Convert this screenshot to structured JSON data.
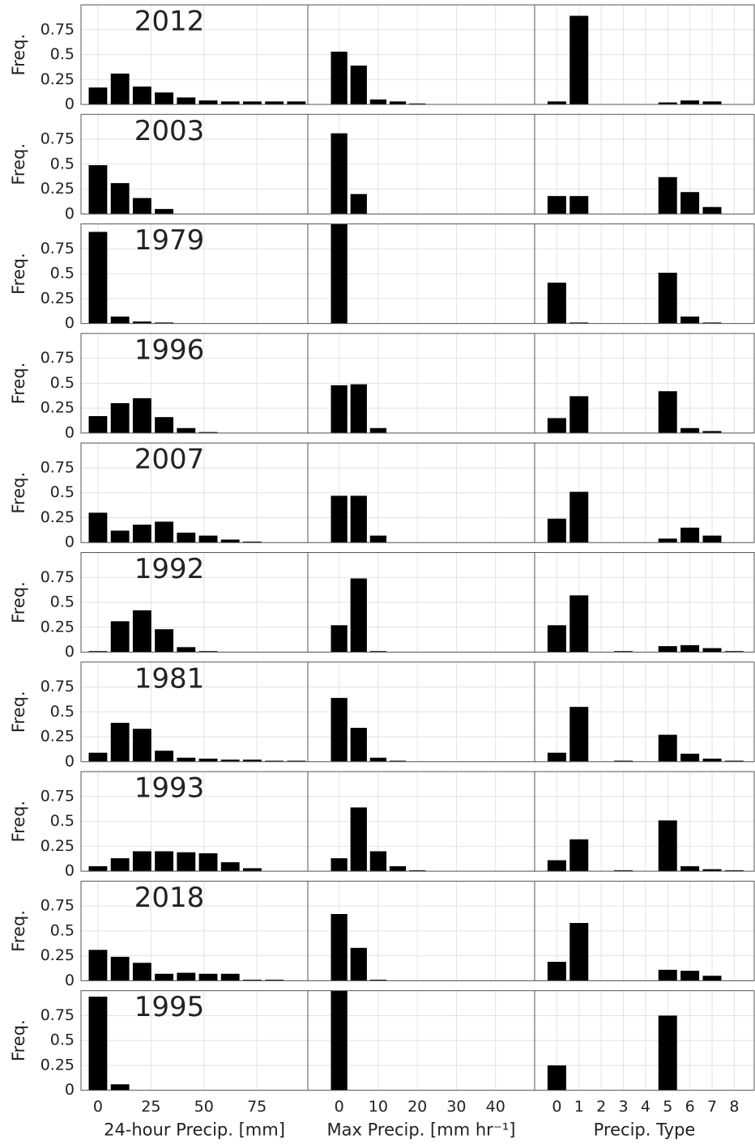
{
  "chart_data": [
    {
      "type": "bar",
      "title": "2012",
      "ylabel": "Freq.",
      "x": [
        0,
        10.4,
        20.8,
        31.2,
        41.6,
        52,
        62.4,
        72.8,
        83.2,
        93.6
      ],
      "values": [
        0.17,
        0.31,
        0.18,
        0.12,
        0.07,
        0.04,
        0.03,
        0.03,
        0.03,
        0.03
      ],
      "xlim": [
        -8,
        99
      ],
      "ylim": [
        0,
        1
      ],
      "xticks": [
        0,
        25,
        50,
        75
      ],
      "yticks": [
        0,
        0.25,
        0.5,
        0.75
      ],
      "color": "#000000",
      "grid": true
    },
    {
      "type": "bar",
      "x": [
        0,
        5,
        10,
        15,
        20
      ],
      "values": [
        0.53,
        0.39,
        0.05,
        0.03,
        0.01
      ],
      "xlim": [
        -8,
        50
      ],
      "ylim": [
        0,
        1
      ],
      "xticks": [
        0,
        10,
        20,
        30,
        40
      ],
      "yticks": [
        0,
        0.25,
        0.5,
        0.75
      ],
      "color": "#000000",
      "grid": true
    },
    {
      "type": "bar",
      "x": [
        0,
        1,
        2,
        3,
        4,
        5,
        6,
        7,
        8
      ],
      "values": [
        0.03,
        0.89,
        0,
        0,
        0,
        0.02,
        0.04,
        0.03,
        0
      ],
      "xlim": [
        -1,
        8.9
      ],
      "ylim": [
        0,
        1
      ],
      "xticks": [
        0,
        1,
        2,
        3,
        4,
        5,
        6,
        7,
        8
      ],
      "yticks": [
        0,
        0.25,
        0.5,
        0.75
      ],
      "color": "#000000",
      "grid": true
    },
    {
      "type": "bar",
      "title": "2003",
      "ylabel": "Freq.",
      "x": [
        0,
        10.4,
        20.8,
        31.2,
        41.6,
        52,
        62.4,
        72.8,
        83.2,
        93.6
      ],
      "values": [
        0.49,
        0.31,
        0.16,
        0.05,
        0,
        0,
        0,
        0,
        0,
        0
      ],
      "xlim": [
        -8,
        99
      ],
      "ylim": [
        0,
        1
      ],
      "xticks": [
        0,
        25,
        50,
        75
      ],
      "yticks": [
        0,
        0.25,
        0.5,
        0.75
      ],
      "color": "#000000",
      "grid": true
    },
    {
      "type": "bar",
      "x": [
        0,
        5,
        10,
        15,
        20
      ],
      "values": [
        0.81,
        0.2,
        0,
        0,
        0
      ],
      "xlim": [
        -8,
        50
      ],
      "ylim": [
        0,
        1
      ],
      "xticks": [
        0,
        10,
        20,
        30,
        40
      ],
      "yticks": [
        0,
        0.25,
        0.5,
        0.75
      ],
      "color": "#000000",
      "grid": true
    },
    {
      "type": "bar",
      "x": [
        0,
        1,
        2,
        3,
        4,
        5,
        6,
        7,
        8
      ],
      "values": [
        0.18,
        0.18,
        0,
        0,
        0,
        0.37,
        0.22,
        0.07,
        0
      ],
      "xlim": [
        -1,
        8.9
      ],
      "ylim": [
        0,
        1
      ],
      "xticks": [
        0,
        1,
        2,
        3,
        4,
        5,
        6,
        7,
        8
      ],
      "yticks": [
        0,
        0.25,
        0.5,
        0.75
      ],
      "color": "#000000",
      "grid": true
    },
    {
      "type": "bar",
      "title": "1979",
      "ylabel": "Freq.",
      "x": [
        0,
        10.4,
        20.8,
        31.2,
        41.6,
        52,
        62.4,
        72.8,
        83.2,
        93.6
      ],
      "values": [
        0.92,
        0.07,
        0.02,
        0.01,
        0,
        0,
        0,
        0,
        0,
        0
      ],
      "xlim": [
        -8,
        99
      ],
      "ylim": [
        0,
        1
      ],
      "xticks": [
        0,
        25,
        50,
        75
      ],
      "yticks": [
        0,
        0.25,
        0.5,
        0.75
      ],
      "color": "#000000",
      "grid": true
    },
    {
      "type": "bar",
      "x": [
        0,
        5,
        10,
        15,
        20
      ],
      "values": [
        1,
        0,
        0,
        0,
        0
      ],
      "xlim": [
        -8,
        50
      ],
      "ylim": [
        0,
        1
      ],
      "xticks": [
        0,
        10,
        20,
        30,
        40
      ],
      "yticks": [
        0,
        0.25,
        0.5,
        0.75
      ],
      "color": "#000000",
      "grid": true
    },
    {
      "type": "bar",
      "x": [
        0,
        1,
        2,
        3,
        4,
        5,
        6,
        7,
        8
      ],
      "values": [
        0.41,
        0.01,
        0,
        0,
        0,
        0.51,
        0.07,
        0.01,
        0
      ],
      "xlim": [
        -1,
        8.9
      ],
      "ylim": [
        0,
        1
      ],
      "xticks": [
        0,
        1,
        2,
        3,
        4,
        5,
        6,
        7,
        8
      ],
      "yticks": [
        0,
        0.25,
        0.5,
        0.75
      ],
      "color": "#000000",
      "grid": true
    },
    {
      "type": "bar",
      "title": "1996",
      "ylabel": "Freq.",
      "x": [
        0,
        10.4,
        20.8,
        31.2,
        41.6,
        52,
        62.4,
        72.8,
        83.2,
        93.6
      ],
      "values": [
        0.17,
        0.3,
        0.35,
        0.16,
        0.05,
        0.01,
        0,
        0,
        0,
        0
      ],
      "xlim": [
        -8,
        99
      ],
      "ylim": [
        0,
        1
      ],
      "xticks": [
        0,
        25,
        50,
        75
      ],
      "yticks": [
        0,
        0.25,
        0.5,
        0.75
      ],
      "color": "#000000",
      "grid": true
    },
    {
      "type": "bar",
      "x": [
        0,
        5,
        10,
        15,
        20
      ],
      "values": [
        0.48,
        0.49,
        0.05,
        0,
        0
      ],
      "xlim": [
        -8,
        50
      ],
      "ylim": [
        0,
        1
      ],
      "xticks": [
        0,
        10,
        20,
        30,
        40
      ],
      "yticks": [
        0,
        0.25,
        0.5,
        0.75
      ],
      "color": "#000000",
      "grid": true
    },
    {
      "type": "bar",
      "x": [
        0,
        1,
        2,
        3,
        4,
        5,
        6,
        7,
        8
      ],
      "values": [
        0.15,
        0.37,
        0,
        0,
        0,
        0.42,
        0.05,
        0.02,
        0
      ],
      "xlim": [
        -1,
        8.9
      ],
      "ylim": [
        0,
        1
      ],
      "xticks": [
        0,
        1,
        2,
        3,
        4,
        5,
        6,
        7,
        8
      ],
      "yticks": [
        0,
        0.25,
        0.5,
        0.75
      ],
      "color": "#000000",
      "grid": true
    },
    {
      "type": "bar",
      "title": "2007",
      "ylabel": "Freq.",
      "x": [
        0,
        10.4,
        20.8,
        31.2,
        41.6,
        52,
        62.4,
        72.8,
        83.2,
        93.6
      ],
      "values": [
        0.3,
        0.12,
        0.18,
        0.21,
        0.1,
        0.07,
        0.03,
        0.01,
        0,
        0
      ],
      "xlim": [
        -8,
        99
      ],
      "ylim": [
        0,
        1
      ],
      "xticks": [
        0,
        25,
        50,
        75
      ],
      "yticks": [
        0,
        0.25,
        0.5,
        0.75
      ],
      "color": "#000000",
      "grid": true
    },
    {
      "type": "bar",
      "x": [
        0,
        5,
        10,
        15,
        20
      ],
      "values": [
        0.47,
        0.47,
        0.07,
        0,
        0
      ],
      "xlim": [
        -8,
        50
      ],
      "ylim": [
        0,
        1
      ],
      "xticks": [
        0,
        10,
        20,
        30,
        40
      ],
      "yticks": [
        0,
        0.25,
        0.5,
        0.75
      ],
      "color": "#000000",
      "grid": true
    },
    {
      "type": "bar",
      "x": [
        0,
        1,
        2,
        3,
        4,
        5,
        6,
        7,
        8
      ],
      "values": [
        0.24,
        0.51,
        0,
        0,
        0,
        0.04,
        0.15,
        0.07,
        0
      ],
      "xlim": [
        -1,
        8.9
      ],
      "ylim": [
        0,
        1
      ],
      "xticks": [
        0,
        1,
        2,
        3,
        4,
        5,
        6,
        7,
        8
      ],
      "yticks": [
        0,
        0.25,
        0.5,
        0.75
      ],
      "color": "#000000",
      "grid": true
    },
    {
      "type": "bar",
      "title": "1992",
      "ylabel": "Freq.",
      "x": [
        0,
        10.4,
        20.8,
        31.2,
        41.6,
        52,
        62.4,
        72.8,
        83.2,
        93.6
      ],
      "values": [
        0.01,
        0.31,
        0.42,
        0.23,
        0.05,
        0.01,
        0,
        0,
        0,
        0
      ],
      "xlim": [
        -8,
        99
      ],
      "ylim": [
        0,
        1
      ],
      "xticks": [
        0,
        25,
        50,
        75
      ],
      "yticks": [
        0,
        0.25,
        0.5,
        0.75
      ],
      "color": "#000000",
      "grid": true
    },
    {
      "type": "bar",
      "x": [
        0,
        5,
        10,
        15,
        20
      ],
      "values": [
        0.27,
        0.74,
        0.01,
        0,
        0
      ],
      "xlim": [
        -8,
        50
      ],
      "ylim": [
        0,
        1
      ],
      "xticks": [
        0,
        10,
        20,
        30,
        40
      ],
      "yticks": [
        0,
        0.25,
        0.5,
        0.75
      ],
      "color": "#000000",
      "grid": true
    },
    {
      "type": "bar",
      "x": [
        0,
        1,
        2,
        3,
        4,
        5,
        6,
        7,
        8
      ],
      "values": [
        0.27,
        0.57,
        0,
        0.01,
        0,
        0.06,
        0.07,
        0.04,
        0.01
      ],
      "xlim": [
        -1,
        8.9
      ],
      "ylim": [
        0,
        1
      ],
      "xticks": [
        0,
        1,
        2,
        3,
        4,
        5,
        6,
        7,
        8
      ],
      "yticks": [
        0,
        0.25,
        0.5,
        0.75
      ],
      "color": "#000000",
      "grid": true
    },
    {
      "type": "bar",
      "title": "1981",
      "ylabel": "Freq.",
      "x": [
        0,
        10.4,
        20.8,
        31.2,
        41.6,
        52,
        62.4,
        72.8,
        83.2,
        93.6
      ],
      "values": [
        0.09,
        0.39,
        0.33,
        0.11,
        0.04,
        0.03,
        0.02,
        0.02,
        0.01,
        0.01
      ],
      "xlim": [
        -8,
        99
      ],
      "ylim": [
        0,
        1
      ],
      "xticks": [
        0,
        25,
        50,
        75
      ],
      "yticks": [
        0,
        0.25,
        0.5,
        0.75
      ],
      "color": "#000000",
      "grid": true
    },
    {
      "type": "bar",
      "x": [
        0,
        5,
        10,
        15,
        20
      ],
      "values": [
        0.64,
        0.34,
        0.04,
        0.01,
        0
      ],
      "xlim": [
        -8,
        50
      ],
      "ylim": [
        0,
        1
      ],
      "xticks": [
        0,
        10,
        20,
        30,
        40
      ],
      "yticks": [
        0,
        0.25,
        0.5,
        0.75
      ],
      "color": "#000000",
      "grid": true
    },
    {
      "type": "bar",
      "x": [
        0,
        1,
        2,
        3,
        4,
        5,
        6,
        7,
        8
      ],
      "values": [
        0.09,
        0.55,
        0,
        0.01,
        0,
        0.27,
        0.08,
        0.03,
        0.01
      ],
      "xlim": [
        -1,
        8.9
      ],
      "ylim": [
        0,
        1
      ],
      "xticks": [
        0,
        1,
        2,
        3,
        4,
        5,
        6,
        7,
        8
      ],
      "yticks": [
        0,
        0.25,
        0.5,
        0.75
      ],
      "color": "#000000",
      "grid": true
    },
    {
      "type": "bar",
      "title": "1993",
      "ylabel": "Freq.",
      "x": [
        0,
        10.4,
        20.8,
        31.2,
        41.6,
        52,
        62.4,
        72.8,
        83.2,
        93.6
      ],
      "values": [
        0.05,
        0.13,
        0.2,
        0.2,
        0.19,
        0.18,
        0.09,
        0.03,
        0,
        0
      ],
      "xlim": [
        -8,
        99
      ],
      "ylim": [
        0,
        1
      ],
      "xticks": [
        0,
        25,
        50,
        75
      ],
      "yticks": [
        0,
        0.25,
        0.5,
        0.75
      ],
      "color": "#000000",
      "grid": true
    },
    {
      "type": "bar",
      "x": [
        0,
        5,
        10,
        15,
        20
      ],
      "values": [
        0.13,
        0.64,
        0.2,
        0.05,
        0.01
      ],
      "xlim": [
        -8,
        50
      ],
      "ylim": [
        0,
        1
      ],
      "xticks": [
        0,
        10,
        20,
        30,
        40
      ],
      "yticks": [
        0,
        0.25,
        0.5,
        0.75
      ],
      "color": "#000000",
      "grid": true
    },
    {
      "type": "bar",
      "x": [
        0,
        1,
        2,
        3,
        4,
        5,
        6,
        7,
        8
      ],
      "values": [
        0.11,
        0.32,
        0,
        0.01,
        0,
        0.51,
        0.05,
        0.02,
        0.01
      ],
      "xlim": [
        -1,
        8.9
      ],
      "ylim": [
        0,
        1
      ],
      "xticks": [
        0,
        1,
        2,
        3,
        4,
        5,
        6,
        7,
        8
      ],
      "yticks": [
        0,
        0.25,
        0.5,
        0.75
      ],
      "color": "#000000",
      "grid": true
    },
    {
      "type": "bar",
      "title": "2018",
      "ylabel": "Freq.",
      "x": [
        0,
        10.4,
        20.8,
        31.2,
        41.6,
        52,
        62.4,
        72.8,
        83.2,
        93.6
      ],
      "values": [
        0.31,
        0.24,
        0.18,
        0.07,
        0.08,
        0.07,
        0.07,
        0.01,
        0.01,
        0
      ],
      "xlim": [
        -8,
        99
      ],
      "ylim": [
        0,
        1
      ],
      "xticks": [
        0,
        25,
        50,
        75
      ],
      "yticks": [
        0,
        0.25,
        0.5,
        0.75
      ],
      "color": "#000000",
      "grid": true
    },
    {
      "type": "bar",
      "x": [
        0,
        5,
        10,
        15,
        20
      ],
      "values": [
        0.67,
        0.33,
        0.01,
        0,
        0
      ],
      "xlim": [
        -8,
        50
      ],
      "ylim": [
        0,
        1
      ],
      "xticks": [
        0,
        10,
        20,
        30,
        40
      ],
      "yticks": [
        0,
        0.25,
        0.5,
        0.75
      ],
      "color": "#000000",
      "grid": true
    },
    {
      "type": "bar",
      "x": [
        0,
        1,
        2,
        3,
        4,
        5,
        6,
        7,
        8
      ],
      "values": [
        0.19,
        0.58,
        0,
        0,
        0,
        0.11,
        0.1,
        0.05,
        0
      ],
      "xlim": [
        -1,
        8.9
      ],
      "ylim": [
        0,
        1
      ],
      "xticks": [
        0,
        1,
        2,
        3,
        4,
        5,
        6,
        7,
        8
      ],
      "yticks": [
        0,
        0.25,
        0.5,
        0.75
      ],
      "color": "#000000",
      "grid": true
    },
    {
      "type": "bar",
      "title": "1995",
      "ylabel": "Freq.",
      "xlabel": "24-hour Precip. [mm]",
      "x": [
        0,
        10.4,
        20.8,
        31.2,
        41.6,
        52,
        62.4,
        72.8,
        83.2,
        93.6
      ],
      "values": [
        0.94,
        0.06,
        0,
        0,
        0,
        0,
        0,
        0,
        0,
        0
      ],
      "xlim": [
        -8,
        99
      ],
      "ylim": [
        0,
        1
      ],
      "xticks": [
        0,
        25,
        50,
        75
      ],
      "yticks": [
        0,
        0.25,
        0.5,
        0.75
      ],
      "color": "#000000",
      "grid": true
    },
    {
      "type": "bar",
      "xlabel": "Max Precip. [mm hr⁻¹]",
      "x": [
        0,
        5,
        10,
        15,
        20
      ],
      "values": [
        1,
        0,
        0,
        0,
        0
      ],
      "xlim": [
        -8,
        50
      ],
      "ylim": [
        0,
        1
      ],
      "xticks": [
        0,
        10,
        20,
        30,
        40
      ],
      "yticks": [
        0,
        0.25,
        0.5,
        0.75
      ],
      "color": "#000000",
      "grid": true
    },
    {
      "type": "bar",
      "xlabel": "Precip. Type",
      "x": [
        0,
        1,
        2,
        3,
        4,
        5,
        6,
        7,
        8
      ],
      "values": [
        0.25,
        0,
        0,
        0,
        0,
        0.75,
        0,
        0,
        0
      ],
      "xlim": [
        -1,
        8.9
      ],
      "ylim": [
        0,
        1
      ],
      "xticks": [
        0,
        1,
        2,
        3,
        4,
        5,
        6,
        7,
        8
      ],
      "yticks": [
        0,
        0.25,
        0.5,
        0.75
      ],
      "color": "#000000",
      "grid": true
    }
  ]
}
